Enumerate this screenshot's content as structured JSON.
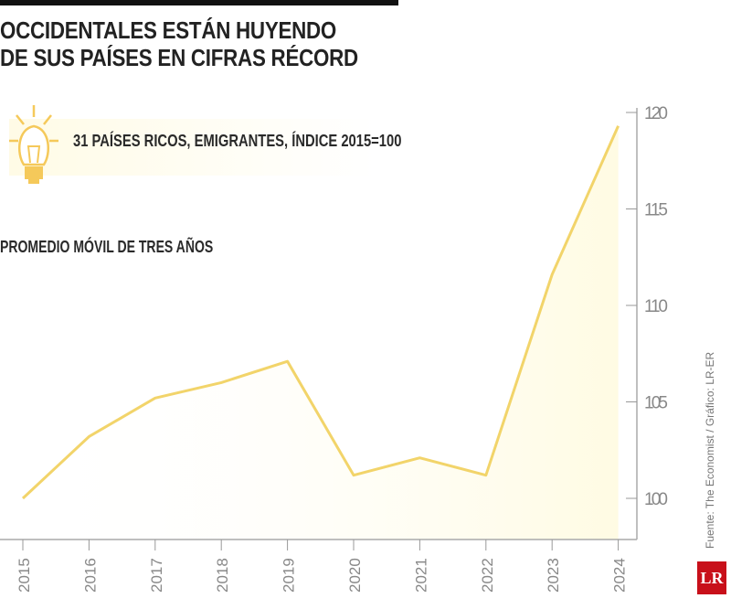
{
  "header": {
    "title_line1": "OCCIDENTALES ESTÁN HUYENDO",
    "title_line2": "DE SUS PAÍSES EN CIFRAS RÉCORD"
  },
  "chart_data": {
    "type": "area",
    "title": "OCCIDENTALES ESTÁN HUYENDO DE SUS PAÍSES EN CIFRAS RÉCORD",
    "subtitle": "31 PAÍSES RICOS, EMIGRANTES, ÍNDICE 2015=100",
    "note": "PROMEDIO MÓVIL DE TRES AÑOS",
    "categories": [
      "2015",
      "2016",
      "2017",
      "2018",
      "2019",
      "2020",
      "2021",
      "2022",
      "2023",
      "2024"
    ],
    "values": [
      100,
      103.2,
      105.2,
      106,
      107.1,
      101.2,
      102.1,
      101.2,
      111.6,
      119.3
    ],
    "yticks": [
      100,
      105,
      110,
      115,
      120
    ],
    "ylim": [
      97.8,
      120
    ],
    "y_axis_side": "right",
    "grid": false,
    "line_color": "#f2d46a",
    "fill_color": "#fffbe3",
    "icon": "lightbulb-icon"
  },
  "source": "Fuente: The Economist / Gráfico: LR-ER",
  "logo": "LR"
}
